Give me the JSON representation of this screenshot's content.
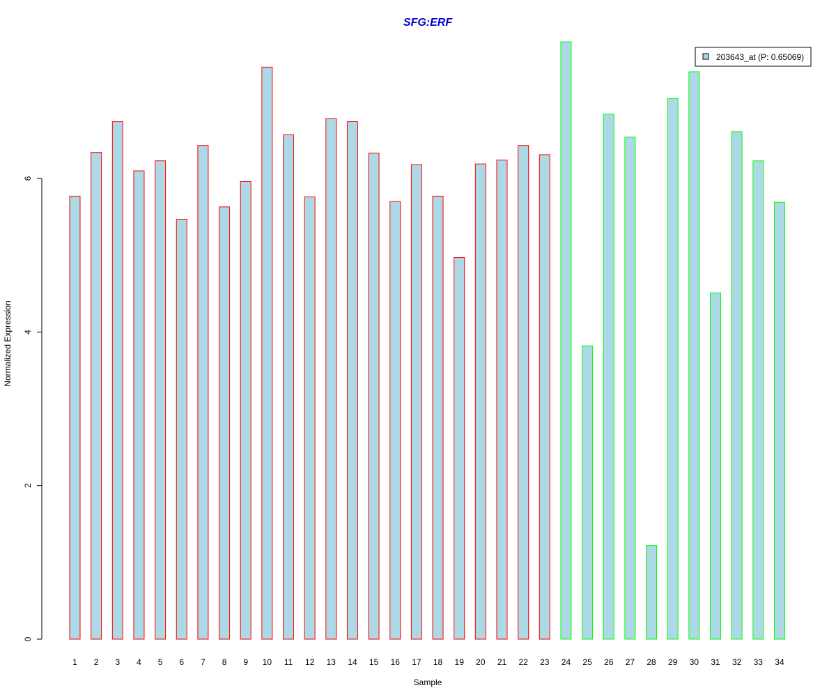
{
  "chart_data": {
    "type": "bar",
    "title": "SFG:ERF",
    "xlabel": "Sample",
    "ylabel": "Normalized Expression",
    "categories": [
      "1",
      "2",
      "3",
      "4",
      "5",
      "6",
      "7",
      "8",
      "9",
      "10",
      "11",
      "12",
      "13",
      "14",
      "15",
      "16",
      "17",
      "18",
      "19",
      "20",
      "21",
      "22",
      "23",
      "24",
      "25",
      "26",
      "27",
      "28",
      "29",
      "30",
      "31",
      "32",
      "33",
      "34"
    ],
    "series": [
      {
        "name": "203643_at (P: 0.65069)",
        "values": [
          5.77,
          6.34,
          6.74,
          6.1,
          6.23,
          5.47,
          6.43,
          5.63,
          5.96,
          7.45,
          6.57,
          5.76,
          6.78,
          6.74,
          6.33,
          5.7,
          6.18,
          5.77,
          4.97,
          6.19,
          6.24,
          6.43,
          6.31,
          7.78,
          3.82,
          6.84,
          6.54,
          1.22,
          7.04,
          7.39,
          4.51,
          6.61,
          6.23,
          5.69
        ]
      }
    ],
    "group_of_bar": [
      "red",
      "red",
      "red",
      "red",
      "red",
      "red",
      "red",
      "red",
      "red",
      "red",
      "red",
      "red",
      "red",
      "red",
      "red",
      "red",
      "red",
      "red",
      "red",
      "red",
      "red",
      "red",
      "red",
      "green",
      "green",
      "green",
      "green",
      "green",
      "green",
      "green",
      "green",
      "green",
      "green",
      "green"
    ],
    "colors": {
      "bar_fill": "#add8e6",
      "border_red": "#ff0000",
      "border_green": "#00ff00",
      "title": "#0000cd",
      "axis": "#000000"
    },
    "yticks": [
      0,
      2,
      4,
      6
    ],
    "ylim": [
      0,
      7.78
    ],
    "grid": false,
    "legend_position": "top-right"
  }
}
